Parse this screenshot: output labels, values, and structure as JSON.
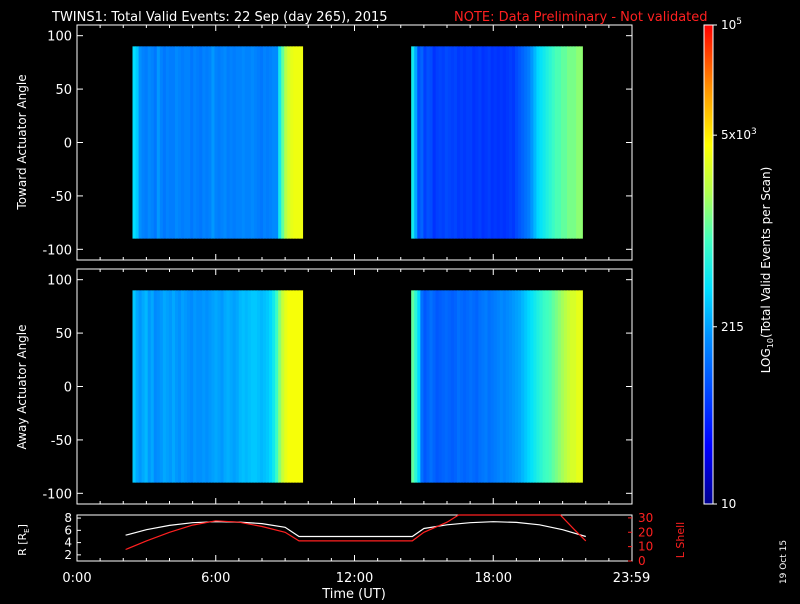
{
  "title": {
    "main": "TWINS1: Total Valid Events: 22 Sep (day 265), 2015",
    "note": "NOTE: Data Preliminary - Not validated",
    "note_color": "#ff2020"
  },
  "stamp": "19 Oct 15",
  "chart_data": [
    {
      "type": "heatmap",
      "panel": "toward",
      "ylabel": "Toward Actuator Angle",
      "ylim": [
        -110,
        110
      ],
      "yticks": [
        100,
        50,
        0,
        -50,
        -100
      ],
      "xlim": [
        0,
        24
      ],
      "data_blocks": [
        {
          "x_start": 2.4,
          "x_end": 9.75,
          "y_start": -90,
          "y_end": 90
        },
        {
          "x_start": 14.45,
          "x_end": 21.85,
          "y_start": -90,
          "y_end": 90
        }
      ],
      "column_levels_block1": [
        0.45,
        0.42,
        0.35,
        0.33,
        0.32,
        0.34,
        0.33,
        0.31,
        0.36,
        0.33,
        0.31,
        0.33,
        0.32,
        0.32,
        0.34,
        0.33,
        0.32,
        0.33,
        0.33,
        0.31,
        0.33,
        0.32,
        0.31,
        0.33,
        0.32,
        0.33,
        0.36,
        0.33,
        0.32,
        0.33,
        0.34,
        0.32,
        0.33,
        0.32,
        0.33,
        0.33,
        0.34,
        0.33,
        0.33,
        0.34,
        0.33,
        0.32,
        0.31,
        0.33,
        0.32,
        0.33,
        0.34,
        0.34,
        0.48,
        0.58,
        0.66,
        0.7,
        0.72,
        0.73,
        0.73,
        0.73
      ],
      "column_levels_block2": [
        0.48,
        0.38,
        0.25,
        0.28,
        0.22,
        0.25,
        0.24,
        0.2,
        0.22,
        0.23,
        0.22,
        0.24,
        0.23,
        0.22,
        0.23,
        0.21,
        0.22,
        0.21,
        0.22,
        0.22,
        0.2,
        0.21,
        0.22,
        0.2,
        0.21,
        0.22,
        0.2,
        0.21,
        0.2,
        0.21,
        0.2,
        0.21,
        0.22,
        0.21,
        0.24,
        0.26,
        0.28,
        0.3,
        0.32,
        0.36,
        0.4,
        0.44,
        0.46,
        0.48,
        0.5,
        0.52,
        0.54,
        0.56,
        0.56,
        0.58,
        0.58,
        0.6,
        0.6,
        0.6,
        0.62,
        0.62
      ]
    },
    {
      "type": "heatmap",
      "panel": "away",
      "ylabel": "Away Actuator Angle",
      "ylim": [
        -110,
        110
      ],
      "yticks": [
        100,
        50,
        0,
        -50,
        -100
      ],
      "xlim": [
        0,
        24
      ],
      "data_blocks": [
        {
          "x_start": 2.4,
          "x_end": 9.75,
          "y_start": -90,
          "y_end": 90
        },
        {
          "x_start": 14.45,
          "x_end": 21.85,
          "y_start": -90,
          "y_end": 90
        }
      ],
      "column_levels_block1": [
        0.42,
        0.38,
        0.36,
        0.38,
        0.4,
        0.36,
        0.38,
        0.34,
        0.35,
        0.36,
        0.38,
        0.37,
        0.36,
        0.38,
        0.36,
        0.35,
        0.37,
        0.36,
        0.35,
        0.34,
        0.36,
        0.35,
        0.35,
        0.36,
        0.35,
        0.36,
        0.37,
        0.38,
        0.37,
        0.36,
        0.38,
        0.39,
        0.38,
        0.37,
        0.38,
        0.4,
        0.41,
        0.4,
        0.41,
        0.42,
        0.42,
        0.41,
        0.4,
        0.41,
        0.42,
        0.44,
        0.48,
        0.54,
        0.62,
        0.68,
        0.72,
        0.74,
        0.74,
        0.74,
        0.74,
        0.74
      ],
      "column_levels_block2": [
        0.58,
        0.52,
        0.44,
        0.3,
        0.26,
        0.28,
        0.3,
        0.28,
        0.26,
        0.27,
        0.28,
        0.29,
        0.28,
        0.27,
        0.28,
        0.3,
        0.29,
        0.28,
        0.29,
        0.3,
        0.29,
        0.28,
        0.3,
        0.31,
        0.32,
        0.3,
        0.31,
        0.32,
        0.33,
        0.34,
        0.33,
        0.34,
        0.35,
        0.36,
        0.37,
        0.38,
        0.4,
        0.42,
        0.44,
        0.46,
        0.48,
        0.5,
        0.52,
        0.54,
        0.55,
        0.56,
        0.58,
        0.6,
        0.62,
        0.64,
        0.66,
        0.68,
        0.7,
        0.7,
        0.72,
        0.72
      ]
    },
    {
      "type": "line",
      "panel": "orbit",
      "ylabel_left": "R [RE]",
      "ylabel_right": "L Shell",
      "xlabel": "Time (UT)",
      "xticks": [
        "0:00",
        "6:00",
        "12:00",
        "18:00",
        "23:59"
      ],
      "xtick_values": [
        0,
        6,
        12,
        18,
        23.98
      ],
      "xlim": [
        0,
        24
      ],
      "yleft_ticks": [
        2,
        4,
        6,
        8
      ],
      "yleft_lim": [
        1,
        8.5
      ],
      "yright_ticks": [
        0,
        10,
        20,
        30
      ],
      "yright_lim": [
        0,
        32
      ],
      "series": [
        {
          "name": "R",
          "axis": "left",
          "color": "#ffffff",
          "x": [
            2.1,
            3,
            4,
            5,
            6,
            7,
            8,
            9,
            9.6,
            14.5,
            15,
            16,
            17,
            18,
            19,
            20,
            21,
            22
          ],
          "y": [
            5.2,
            6.1,
            6.8,
            7.25,
            7.4,
            7.35,
            7.1,
            6.5,
            5.0,
            5.0,
            6.3,
            6.9,
            7.25,
            7.4,
            7.3,
            6.9,
            6.1,
            5.0
          ]
        },
        {
          "name": "L Shell",
          "axis": "right",
          "color": "#ff2020",
          "x": [
            2.1,
            3,
            4,
            5,
            6,
            7,
            8,
            9,
            9.6,
            14.5,
            15,
            16,
            16.5,
            20.9,
            21.5,
            22
          ],
          "y": [
            8,
            14,
            20,
            25,
            28,
            27,
            24,
            20,
            14,
            14,
            20,
            27,
            32,
            32,
            22,
            14
          ]
        }
      ]
    },
    {
      "type": "colorbar",
      "label": "LOG10(Total Valid Events per Scan)",
      "tick_labels": [
        {
          "text": "10",
          "level": 0.0
        },
        {
          "text": "215",
          "level": 0.37
        },
        {
          "text": "5x10^3",
          "level": 0.77
        },
        {
          "text": "10^5",
          "level": 1.0
        }
      ]
    }
  ]
}
